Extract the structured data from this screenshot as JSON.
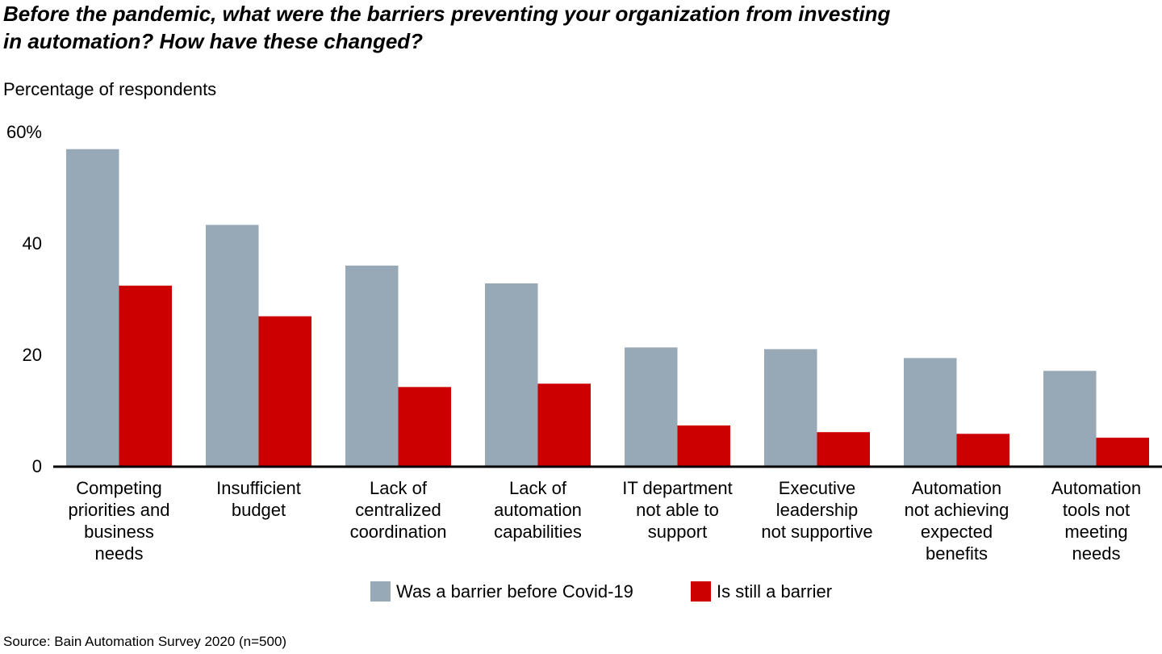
{
  "chart_data": {
    "type": "bar",
    "title": "Before the pandemic, what were the barriers preventing your organization from investing\nin automation? How have these changed?",
    "y_label": "Percentage of respondents",
    "source": "Source: Bain Automation Survey 2020 (n=500)",
    "categories": [
      "Competing\npriorities and\nbusiness\nneeds",
      "Insufficient\nbudget",
      "Lack of\ncentralized\ncoordination",
      "Lack of\nautomation\ncapabilities",
      "IT department\nnot able to\nsupport",
      "Executive\nleadership\nnot supportive",
      "Automation\nnot achieving\nexpected\nbenefits",
      "Automation\ntools not\nmeeting\nneeds"
    ],
    "series": [
      {
        "name": "Was a barrier before Covid-19",
        "color": "#97a8b6",
        "values": [
          57,
          43.4,
          36.1,
          32.9,
          21.4,
          21.1,
          19.5,
          17.2
        ]
      },
      {
        "name": "Is still a barrier",
        "color": "#cc0000",
        "values": [
          32.5,
          27,
          14.3,
          14.9,
          7.4,
          6.2,
          5.9,
          5.2
        ]
      }
    ],
    "ylim": [
      0,
      60
    ],
    "yticks": [
      0,
      20,
      40,
      {
        "value": 60,
        "label": "60%"
      }
    ],
    "grid": false
  }
}
